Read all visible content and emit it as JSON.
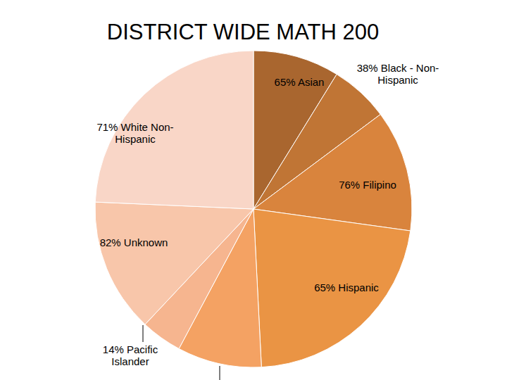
{
  "chart_data": {
    "type": "pie",
    "title": "DISTRICT WIDE MATH 200",
    "categories": [
      "65% Asian",
      "38% Black - Non-Hispanic",
      "76% Filipino",
      "65% Hispanic",
      null,
      "14% Pacific Islander",
      "82% Unknown",
      "71% White Non-Hispanic"
    ],
    "values": [
      8.8,
      6.0,
      12.4,
      22.0,
      8.6,
      4.2,
      13.7,
      24.3
    ],
    "colors": [
      "#a9662f",
      "#c07535",
      "#d9843d",
      "#ea9444",
      "#f4a263",
      "#f6b58f",
      "#f8c6aa",
      "#f9d6c7"
    ]
  }
}
